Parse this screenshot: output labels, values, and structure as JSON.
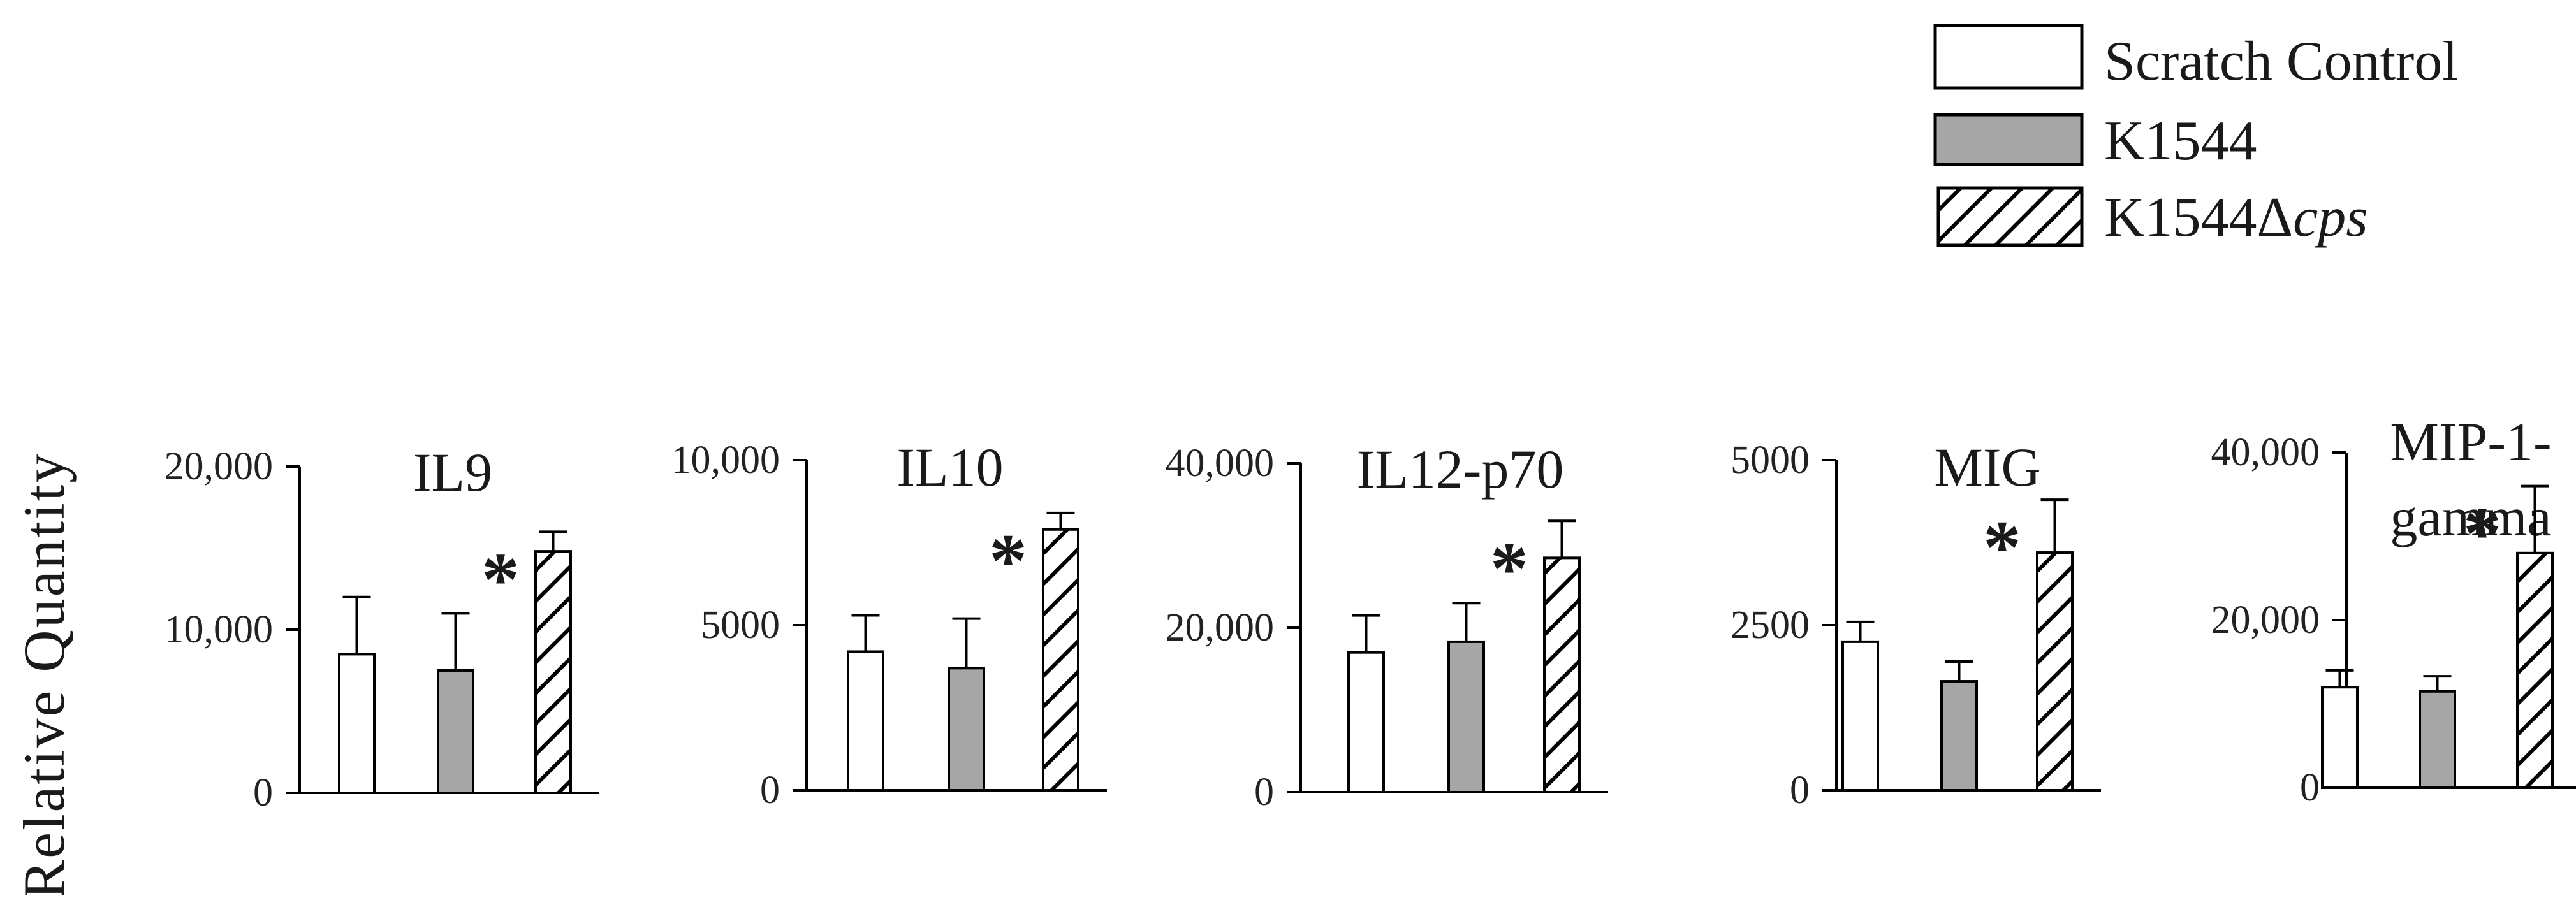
{
  "figure": {
    "ylabel": "Relative  Quantity"
  },
  "legend": [
    {
      "label": "Scratch Control",
      "fill": "white"
    },
    {
      "label": "K1544",
      "fill": "gray"
    },
    {
      "label_main": "K1544Δ",
      "label_italic": "cps",
      "fill": "hatch"
    }
  ],
  "colors": {
    "scratch_control": "#ffffff",
    "k1544": "#a6a6a6",
    "k1544_dcps": "hatched black on white",
    "outline": "#000000"
  },
  "chart_data": [
    {
      "type": "bar",
      "title": "IL9",
      "categories": [
        "Scratch Control",
        "K1544",
        "K1544Δcps"
      ],
      "values": [
        8500,
        7500,
        14800
      ],
      "errors": [
        3500,
        3500,
        1200
      ],
      "significant": [
        false,
        false,
        true
      ],
      "ylim": [
        0,
        20000
      ],
      "ticks": [
        0,
        10000,
        20000
      ],
      "tick_labels": [
        "0",
        "10,000",
        "20,000"
      ]
    },
    {
      "type": "bar",
      "title": "IL10",
      "categories": [
        "Scratch Control",
        "K1544",
        "K1544Δcps"
      ],
      "values": [
        4200,
        3700,
        7900
      ],
      "errors": [
        1100,
        1500,
        500
      ],
      "significant": [
        false,
        false,
        true
      ],
      "ylim": [
        0,
        10000
      ],
      "ticks": [
        0,
        5000,
        10000
      ],
      "tick_labels": [
        "0",
        "5000",
        "10,000"
      ]
    },
    {
      "type": "bar",
      "title": "IL12-p70",
      "categories": [
        "Scratch Control",
        "K1544",
        "K1544Δcps"
      ],
      "values": [
        17000,
        18300,
        28500
      ],
      "errors": [
        4500,
        4700,
        4500
      ],
      "significant": [
        false,
        false,
        true
      ],
      "ylim": [
        0,
        40000
      ],
      "ticks": [
        0,
        20000,
        40000
      ],
      "tick_labels": [
        "0",
        "20,000",
        "40,000"
      ]
    },
    {
      "type": "bar",
      "title": "MIG",
      "categories": [
        "Scratch Control",
        "K1544",
        "K1544Δcps"
      ],
      "values": [
        2250,
        1650,
        3600
      ],
      "errors": [
        300,
        300,
        800
      ],
      "significant": [
        false,
        false,
        true
      ],
      "ylim": [
        0,
        5000
      ],
      "ticks": [
        0,
        2500,
        5000
      ],
      "tick_labels": [
        "0",
        "2500",
        "5000"
      ]
    },
    {
      "type": "bar",
      "title_lines": [
        "MIP-1-",
        "gamma"
      ],
      "categories": [
        "Scratch Control",
        "K1544",
        "K1544Δcps"
      ],
      "values": [
        12000,
        11500,
        28000
      ],
      "errors": [
        2000,
        1800,
        8000
      ],
      "significant": [
        false,
        false,
        true
      ],
      "ylim": [
        0,
        40000
      ],
      "ticks": [
        0,
        20000,
        40000
      ],
      "tick_labels": [
        "0",
        "20,000",
        "40,000"
      ]
    }
  ]
}
